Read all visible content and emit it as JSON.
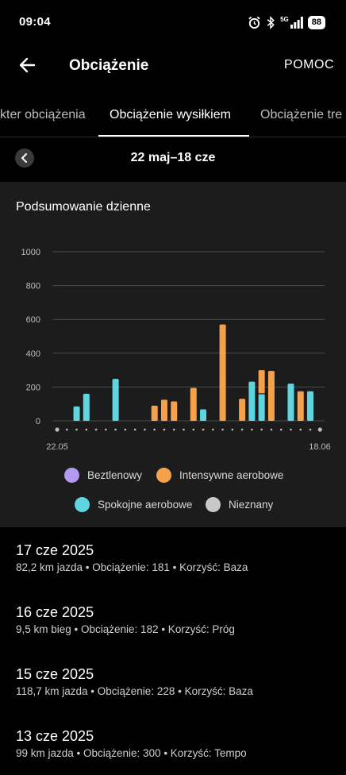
{
  "status_bar": {
    "time": "09:04",
    "signal_label": "5G",
    "battery": "88",
    "icons": [
      "alarm-icon",
      "bluetooth-icon",
      "signal-icon",
      "battery-icon"
    ]
  },
  "app_bar": {
    "title": "Obciążenie",
    "help_label": "POMOC",
    "back_icon": "arrow-left-icon"
  },
  "tabs": [
    {
      "label": "Charakter obciążenia",
      "visible_text": "kter obciążenia",
      "active": false
    },
    {
      "label": "Obciążenie wysiłkiem",
      "visible_text": "Obciążenie wysiłkiem",
      "active": true
    },
    {
      "label": "Obciążenie tre",
      "visible_text": "Obciążenie tre",
      "active": false
    }
  ],
  "date_nav": {
    "range": "22 maj–18 cze",
    "prev_icon": "chevron-left-icon"
  },
  "summary": {
    "title": "Podsumowanie dzienne"
  },
  "colors": {
    "background": "#000000",
    "card": "#1c1c1c",
    "anaerobic": "#b499f2",
    "high_aerobic": "#f5a04a",
    "low_aerobic": "#5fd5e0",
    "unknown": "#c8c8c8"
  },
  "chart_data": {
    "type": "bar",
    "stacked": true,
    "title": "Podsumowanie dzienne",
    "x_start_label": "22.05",
    "x_end_label": "18.06",
    "yticks": [
      0,
      200,
      400,
      600,
      800,
      1000
    ],
    "ylim": [
      0,
      1000
    ],
    "grid": true,
    "legend_position": "bottom",
    "days": [
      "22.05",
      "23.05",
      "24.05",
      "25.05",
      "26.05",
      "27.05",
      "28.05",
      "29.05",
      "30.05",
      "31.05",
      "01.06",
      "02.06",
      "03.06",
      "04.06",
      "05.06",
      "06.06",
      "07.06",
      "08.06",
      "09.06",
      "10.06",
      "11.06",
      "12.06",
      "13.06",
      "14.06",
      "15.06",
      "16.06",
      "17.06",
      "18.06"
    ],
    "series": [
      {
        "name": "Beztlenowy",
        "color": "#b499f2",
        "values": [
          0,
          0,
          0,
          0,
          0,
          0,
          0,
          0,
          0,
          0,
          0,
          0,
          0,
          0,
          0,
          0,
          0,
          0,
          0,
          0,
          0,
          0,
          0,
          0,
          0,
          0,
          0,
          0
        ]
      },
      {
        "name": "Intensywne aerobowe",
        "color": "#f5a04a",
        "values": [
          0,
          0,
          0,
          0,
          0,
          0,
          0,
          0,
          0,
          0,
          90,
          125,
          115,
          0,
          195,
          0,
          0,
          570,
          0,
          130,
          0,
          140,
          295,
          0,
          0,
          175,
          0,
          0
        ]
      },
      {
        "name": "Spokojne aerobowe",
        "color": "#5fd5e0",
        "values": [
          0,
          0,
          85,
          160,
          0,
          0,
          248,
          0,
          0,
          0,
          0,
          0,
          0,
          0,
          0,
          68,
          0,
          0,
          0,
          0,
          232,
          160,
          0,
          0,
          220,
          0,
          175,
          0
        ]
      },
      {
        "name": "Nieznany",
        "color": "#c8c8c8",
        "values": [
          0,
          0,
          0,
          0,
          0,
          0,
          0,
          0,
          0,
          0,
          0,
          0,
          0,
          0,
          0,
          0,
          0,
          0,
          0,
          0,
          0,
          0,
          0,
          0,
          0,
          0,
          0,
          0
        ]
      }
    ],
    "stack_order": [
      [
        "low",
        "high"
      ],
      [
        "high",
        "low"
      ]
    ],
    "special_stacks": {
      "12": [
        "low",
        "high"
      ]
    }
  },
  "activities": [
    {
      "date": "17 cze 2025",
      "details": "82,2 km jazda • Obciążenie: 181 • Korzyść: Baza"
    },
    {
      "date": "16 cze 2025",
      "details": "9,5 km bieg • Obciążenie: 182 • Korzyść: Próg"
    },
    {
      "date": "15 cze 2025",
      "details": "118,7 km jazda • Obciążenie: 228 • Korzyść: Baza"
    },
    {
      "date": "13 cze 2025",
      "details": "99 km jazda • Obciążenie: 300 • Korzyść: Tempo"
    }
  ]
}
